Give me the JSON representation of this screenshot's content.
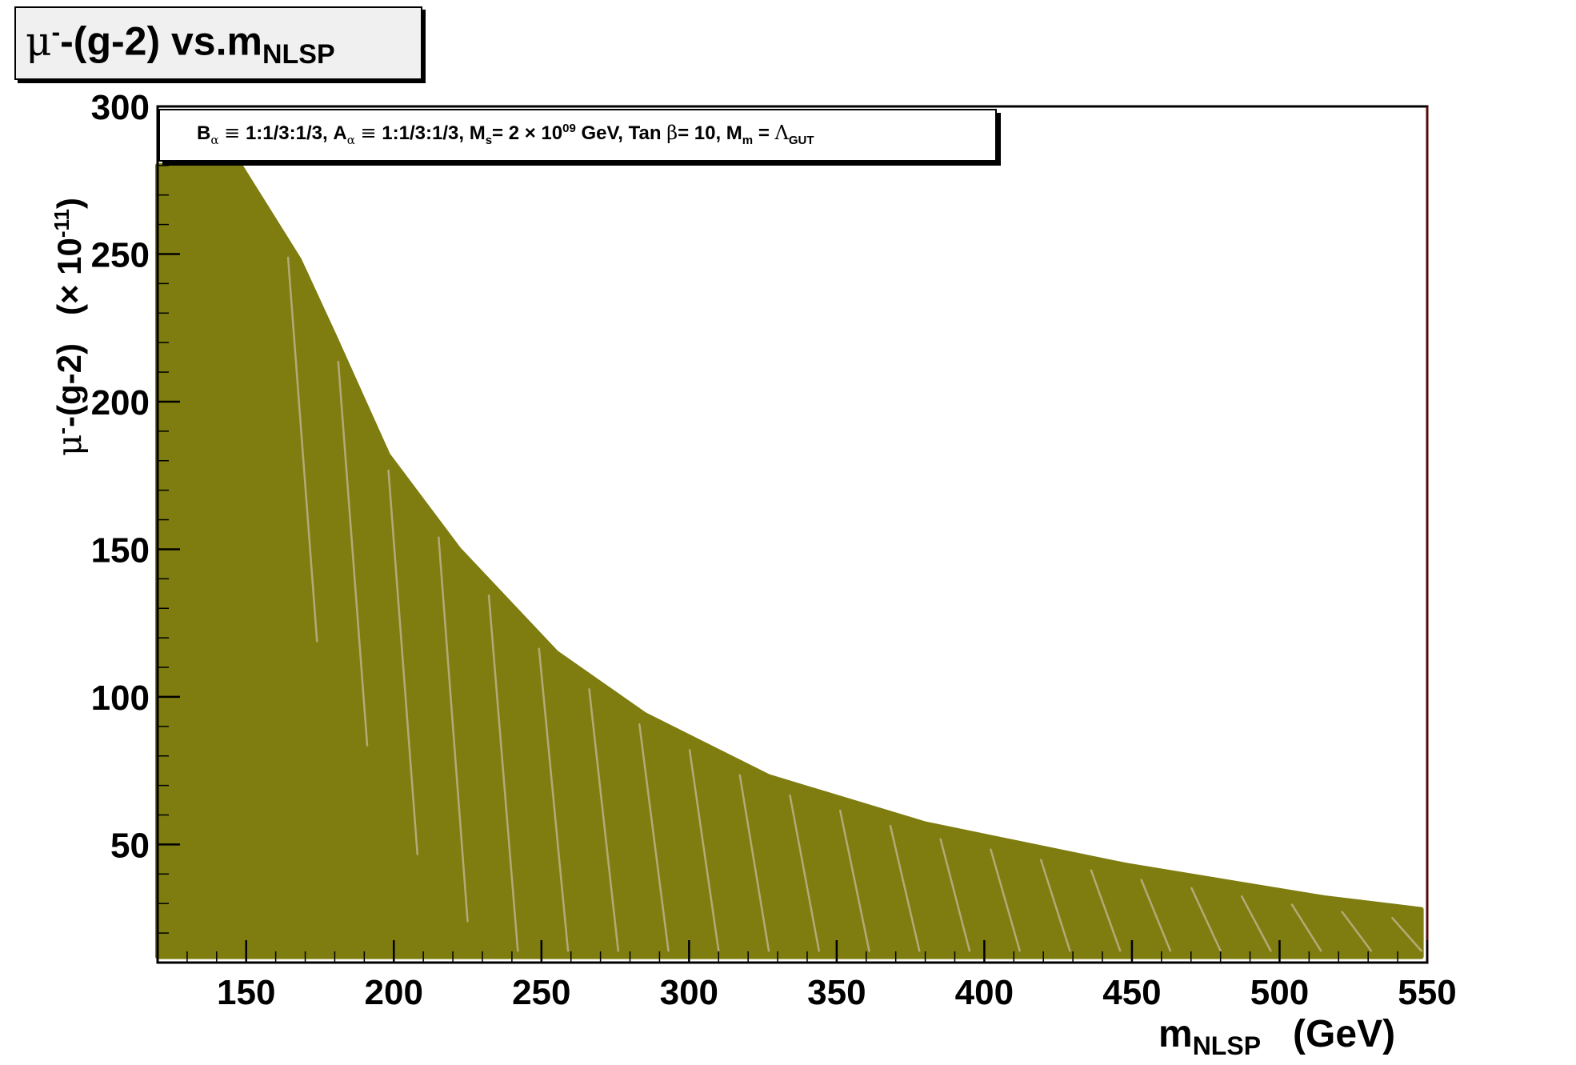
{
  "chart_data": {
    "type": "area",
    "title": "μ⁻-(g-2) vs.m_NLSP",
    "title_parts": {
      "mu": "μ",
      "sup": "-",
      "main": "-(g-2) vs.m",
      "sub": "NLSP"
    },
    "annotation": {
      "b_alpha": "B",
      "b_alpha_sub": "α",
      "equiv": "≡",
      "b_value": "1:1/3:1/3,",
      "a_alpha": "A",
      "a_alpha_sub": "α",
      "a_value": "1:1/3:1/3,",
      "ms": "M",
      "ms_sub": "s",
      "ms_value": "= 2 × 10",
      "ms_exp": "09",
      "ms_unit": "GeV,",
      "tan": "Tan",
      "beta": "β",
      "tan_value": "= 10,",
      "mm": "M",
      "mm_sub": "m",
      "mm_eq": "=",
      "lambda": "Λ",
      "lambda_sub": "GUT"
    },
    "xlabel": {
      "m": "m",
      "sub": "NLSP",
      "unit": "(GeV)"
    },
    "ylabel": {
      "mu": "μ",
      "sup": "-",
      "main": "-(g-2)",
      "scale": "(× 10",
      "scale_exp": "-11",
      "close": ")"
    },
    "xlim": [
      120,
      550
    ],
    "ylim": [
      10,
      300
    ],
    "xticks": [
      150,
      200,
      250,
      300,
      350,
      400,
      450,
      500,
      550
    ],
    "yticks": [
      50,
      100,
      150,
      200,
      250,
      300
    ],
    "grid": false,
    "fill_color": "#7f7d10",
    "edge_color": "#c8b89a",
    "upper_envelope": {
      "x": [
        120,
        148,
        168,
        180,
        198,
        222,
        255,
        285,
        327,
        380,
        448,
        515,
        548
      ],
      "y": [
        280,
        280,
        248,
        222,
        182,
        150,
        115,
        94,
        73,
        57,
        43,
        32,
        28
      ]
    },
    "lower_bound": 12
  }
}
